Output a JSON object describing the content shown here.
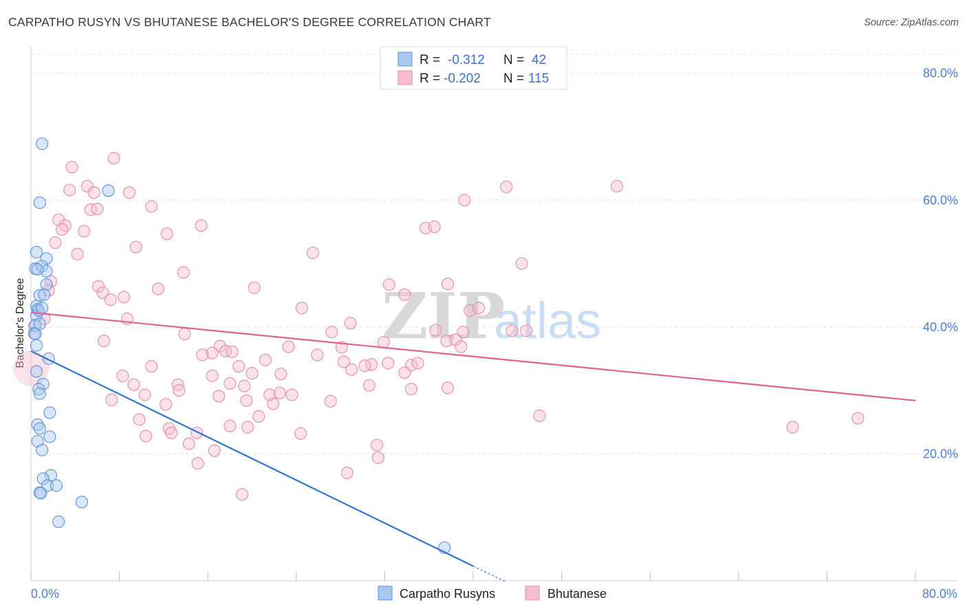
{
  "header": {
    "title": "CARPATHO RUSYN VS BHUTANESE BACHELOR'S DEGREE CORRELATION CHART",
    "source": "Source: ZipAtlas.com"
  },
  "watermark": {
    "zip": "ZIP",
    "atlas": "atlas"
  },
  "legend": {
    "r_label": "R =",
    "n_label": "N =",
    "rows": [
      {
        "r": "-0.312",
        "n": "42"
      },
      {
        "r": "-0.202",
        "n": "115"
      }
    ]
  },
  "bottom_legend": [
    "Carpatho Rusyns",
    "Bhutanese"
  ],
  "colors": {
    "blue_fill": "#a9c8f0",
    "blue_stroke": "#5b93dc",
    "blue_line": "#2e74d6",
    "pink_fill": "#f6bfd0",
    "pink_stroke": "#e88aa8",
    "pink_line": "#e0628d",
    "tick_label": "#4a7fd4",
    "grid": "#e3e3e3"
  },
  "chart_data": {
    "type": "scatter",
    "title": "CARPATHO RUSYN VS BHUTANESE BACHELOR'S DEGREE CORRELATION CHART",
    "xlabel": "",
    "ylabel": "Bachelor's Degree",
    "xlim": [
      0,
      80
    ],
    "ylim": [
      0,
      83
    ],
    "x_tick_labels": [
      "0.0%",
      "80.0%"
    ],
    "y_ticks": [
      20,
      40,
      60,
      80
    ],
    "y_tick_labels": [
      "20.0%",
      "40.0%",
      "60.0%",
      "80.0%"
    ],
    "grid": true,
    "legend_position": "top-center",
    "series": [
      {
        "name": "Carpatho Rusyns",
        "r": -0.312,
        "n": 42,
        "trend": {
          "x": [
            0,
            40
          ],
          "y": [
            36.2,
            2.3
          ]
        },
        "trend_extension": {
          "x": [
            40,
            43
          ],
          "y": [
            2.3,
            -0.2
          ]
        },
        "points": [
          [
            1.0,
            68.9
          ],
          [
            0.8,
            59.6
          ],
          [
            7.0,
            61.5
          ],
          [
            0.5,
            51.8
          ],
          [
            1.4,
            50.8
          ],
          [
            0.4,
            49.2
          ],
          [
            1.0,
            49.6
          ],
          [
            1.4,
            48.8
          ],
          [
            1.4,
            46.7
          ],
          [
            0.8,
            45.0
          ],
          [
            0.5,
            43.3
          ],
          [
            0.6,
            42.8
          ],
          [
            0.5,
            41.8
          ],
          [
            0.4,
            40.3
          ],
          [
            0.3,
            39.0
          ],
          [
            0.5,
            37.1
          ],
          [
            1.6,
            35.0
          ],
          [
            1.1,
            31.0
          ],
          [
            0.7,
            30.2
          ],
          [
            0.8,
            29.5
          ],
          [
            1.7,
            26.5
          ],
          [
            0.6,
            24.6
          ],
          [
            0.8,
            24.0
          ],
          [
            1.7,
            22.7
          ],
          [
            0.6,
            22.0
          ],
          [
            1.0,
            20.6
          ],
          [
            1.8,
            16.6
          ],
          [
            1.1,
            16.1
          ],
          [
            1.5,
            15.0
          ],
          [
            2.3,
            15.0
          ],
          [
            0.8,
            13.9
          ],
          [
            0.9,
            13.8
          ],
          [
            4.6,
            12.4
          ],
          [
            2.5,
            9.3
          ],
          [
            37.4,
            5.2
          ],
          [
            0.7,
            42.6
          ],
          [
            0.4,
            38.9
          ],
          [
            0.6,
            49.1
          ],
          [
            1.2,
            45.1
          ],
          [
            0.8,
            40.5
          ],
          [
            1.0,
            43.0
          ],
          [
            0.5,
            33.0
          ]
        ]
      },
      {
        "name": "Bhutanese",
        "r": -0.202,
        "n": 115,
        "trend": {
          "x": [
            0,
            80
          ],
          "y": [
            42.3,
            28.4
          ]
        },
        "points": [
          [
            3.7,
            65.2
          ],
          [
            7.5,
            66.6
          ],
          [
            3.5,
            61.6
          ],
          [
            5.1,
            62.2
          ],
          [
            5.7,
            61.2
          ],
          [
            8.9,
            61.2
          ],
          [
            39.2,
            60.0
          ],
          [
            43.0,
            62.1
          ],
          [
            53.0,
            62.2
          ],
          [
            10.9,
            59.0
          ],
          [
            2.5,
            56.9
          ],
          [
            3.1,
            56.0
          ],
          [
            2.8,
            55.4
          ],
          [
            4.8,
            55.1
          ],
          [
            5.4,
            58.5
          ],
          [
            6.0,
            58.6
          ],
          [
            12.3,
            54.7
          ],
          [
            15.4,
            56.0
          ],
          [
            35.7,
            55.6
          ],
          [
            36.5,
            55.8
          ],
          [
            2.2,
            53.3
          ],
          [
            4.2,
            51.5
          ],
          [
            9.5,
            52.6
          ],
          [
            25.5,
            51.7
          ],
          [
            44.4,
            50.0
          ],
          [
            13.8,
            48.6
          ],
          [
            1.8,
            47.2
          ],
          [
            6.1,
            46.4
          ],
          [
            6.5,
            45.4
          ],
          [
            1.6,
            45.8
          ],
          [
            11.5,
            46.0
          ],
          [
            20.2,
            46.2
          ],
          [
            32.4,
            46.7
          ],
          [
            33.8,
            45.1
          ],
          [
            37.7,
            46.8
          ],
          [
            7.2,
            44.3
          ],
          [
            8.4,
            44.7
          ],
          [
            24.5,
            43.0
          ],
          [
            39.7,
            42.6
          ],
          [
            40.5,
            43.0
          ],
          [
            8.7,
            41.3
          ],
          [
            1.2,
            41.3
          ],
          [
            0.3,
            40.1
          ],
          [
            28.9,
            40.6
          ],
          [
            27.2,
            39.2
          ],
          [
            36.6,
            39.5
          ],
          [
            39.1,
            39.2
          ],
          [
            43.5,
            39.4
          ],
          [
            44.8,
            39.4
          ],
          [
            13.9,
            38.9
          ],
          [
            6.6,
            37.8
          ],
          [
            31.9,
            37.6
          ],
          [
            37.6,
            37.8
          ],
          [
            38.4,
            38.0
          ],
          [
            17.1,
            37.0
          ],
          [
            23.3,
            36.9
          ],
          [
            28.1,
            36.8
          ],
          [
            38.9,
            36.9
          ],
          [
            16.4,
            35.9
          ],
          [
            17.6,
            36.2
          ],
          [
            18.2,
            36.1
          ],
          [
            15.5,
            35.6
          ],
          [
            25.9,
            35.6
          ],
          [
            21.2,
            34.8
          ],
          [
            28.3,
            34.5
          ],
          [
            30.8,
            34.1
          ],
          [
            32.3,
            34.3
          ],
          [
            34.4,
            34.0
          ],
          [
            35.0,
            34.3
          ],
          [
            10.9,
            33.8
          ],
          [
            18.8,
            33.8
          ],
          [
            30.2,
            33.9
          ],
          [
            29.0,
            33.3
          ],
          [
            20.0,
            32.7
          ],
          [
            22.6,
            32.6
          ],
          [
            33.8,
            32.8
          ],
          [
            16.4,
            32.3
          ],
          [
            8.3,
            32.3
          ],
          [
            18.0,
            31.1
          ],
          [
            9.3,
            30.9
          ],
          [
            13.3,
            30.9
          ],
          [
            19.3,
            30.7
          ],
          [
            30.6,
            30.8
          ],
          [
            34.4,
            30.2
          ],
          [
            37.7,
            30.4
          ],
          [
            13.4,
            30.0
          ],
          [
            10.3,
            29.3
          ],
          [
            17.0,
            29.1
          ],
          [
            21.6,
            29.3
          ],
          [
            22.5,
            29.6
          ],
          [
            23.6,
            29.3
          ],
          [
            7.3,
            28.5
          ],
          [
            19.5,
            28.4
          ],
          [
            27.1,
            28.3
          ],
          [
            12.2,
            27.8
          ],
          [
            21.9,
            27.9
          ],
          [
            20.6,
            25.9
          ],
          [
            9.8,
            25.4
          ],
          [
            46.0,
            26.0
          ],
          [
            68.9,
            24.2
          ],
          [
            74.8,
            25.6
          ],
          [
            12.5,
            24.0
          ],
          [
            18.0,
            24.4
          ],
          [
            19.6,
            24.2
          ],
          [
            12.7,
            23.3
          ],
          [
            15.0,
            23.3
          ],
          [
            10.4,
            22.8
          ],
          [
            24.4,
            23.2
          ],
          [
            14.3,
            21.6
          ],
          [
            31.3,
            21.4
          ],
          [
            16.6,
            20.5
          ],
          [
            31.4,
            19.4
          ],
          [
            15.1,
            18.5
          ],
          [
            28.6,
            17.0
          ],
          [
            19.1,
            13.6
          ]
        ]
      }
    ]
  }
}
